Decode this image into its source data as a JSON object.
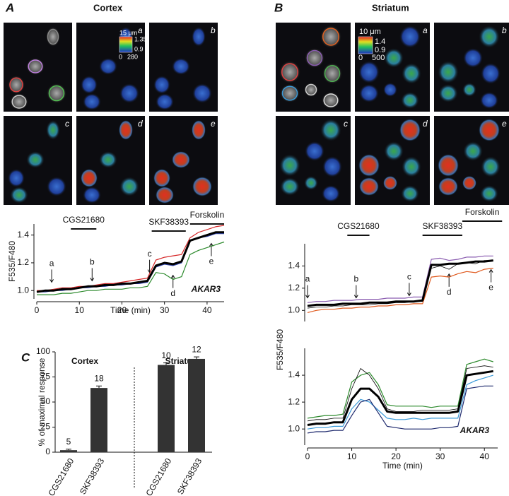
{
  "panel_A": {
    "letter": "A",
    "title": "Cortex",
    "image_labels": [
      "a",
      "b",
      "c",
      "d",
      "e"
    ],
    "scale": {
      "length": "15 μm",
      "ratio_max": "1.35",
      "ratio_min": "0.9",
      "intensity_min": "0",
      "intensity_max": "280"
    }
  },
  "panel_B": {
    "letter": "B",
    "title": "Striatum",
    "image_labels": [
      "a",
      "b",
      "c",
      "d",
      "e"
    ],
    "scale": {
      "length": "10 μm",
      "ratio_max": "1.4",
      "ratio_min": "0.9",
      "intensity_min": "0",
      "intensity_max": "500"
    }
  },
  "panel_C": {
    "letter": "C"
  },
  "chart_data": [
    {
      "type": "line",
      "ylabel": "F535/F480",
      "xlabel": "Time (min)",
      "tag": "AKAR3",
      "xlim": [
        0,
        44
      ],
      "xticks": [
        0,
        10,
        20,
        30,
        40
      ],
      "ylim": [
        0.94,
        1.48
      ],
      "yticks": [
        {
          "value": 1,
          "label": "1.0"
        },
        1.2,
        1.4
      ],
      "treatments": [
        {
          "label": "CGS21680",
          "start": 8,
          "end": 14
        },
        {
          "label": "SKF38393",
          "start": 27,
          "end": 35
        },
        {
          "label": "Forskolin",
          "start": 36,
          "end": 44
        }
      ],
      "annotations": [
        {
          "text": "a",
          "x": 3.5,
          "y": 1.05,
          "direction": "down"
        },
        {
          "text": "b",
          "x": 13,
          "y": 1.06,
          "direction": "down"
        },
        {
          "text": "c",
          "x": 26.5,
          "y": 1.12,
          "direction": "down"
        },
        {
          "text": "d",
          "x": 32,
          "y": 1.12,
          "direction": "up"
        },
        {
          "text": "e",
          "x": 41,
          "y": 1.35,
          "direction": "up"
        }
      ],
      "x": [
        0,
        2,
        4,
        6,
        8,
        10,
        12,
        14,
        16,
        18,
        20,
        22,
        24,
        26,
        28,
        30,
        32,
        34,
        36,
        38,
        40,
        42,
        44
      ],
      "series": [
        {
          "color": "#d62728",
          "width": 1.2,
          "values": [
            1.0,
            1.0,
            1.01,
            1.02,
            1.02,
            1.03,
            1.03,
            1.04,
            1.05,
            1.05,
            1.06,
            1.07,
            1.08,
            1.09,
            1.22,
            1.24,
            1.25,
            1.26,
            1.38,
            1.42,
            1.44,
            1.46,
            1.47
          ]
        },
        {
          "color": "#2b3fa8",
          "width": 1.2,
          "values": [
            0.99,
            0.99,
            1.0,
            1.0,
            1.01,
            1.02,
            1.02,
            1.03,
            1.03,
            1.04,
            1.04,
            1.05,
            1.05,
            1.06,
            1.17,
            1.19,
            1.18,
            1.2,
            1.36,
            1.38,
            1.39,
            1.41,
            1.41
          ]
        },
        {
          "color": "#2c8a2c",
          "width": 1.2,
          "values": [
            0.97,
            0.97,
            0.97,
            0.98,
            0.98,
            0.99,
            1.0,
            1.0,
            1.01,
            1.01,
            1.01,
            1.02,
            1.02,
            1.03,
            1.13,
            1.12,
            1.08,
            1.1,
            1.26,
            1.29,
            1.31,
            1.33,
            1.35
          ]
        },
        {
          "color": "#000000",
          "width": 3,
          "values": [
            0.99,
            1.0,
            1.0,
            1.01,
            1.01,
            1.02,
            1.03,
            1.03,
            1.04,
            1.04,
            1.05,
            1.05,
            1.06,
            1.07,
            1.18,
            1.2,
            1.19,
            1.21,
            1.36,
            1.38,
            1.4,
            1.42,
            1.42
          ]
        }
      ]
    },
    {
      "type": "line",
      "xlim": [
        0,
        43
      ],
      "ylim": [
        0.9,
        1.6
      ],
      "yticks": [
        {
          "value": 1,
          "label": "1.0"
        },
        1.2,
        1.4
      ],
      "treatments": [
        {
          "label": "CGS21680",
          "start": 9,
          "end": 14
        },
        {
          "label": "SKF38393",
          "start": 26,
          "end": 35
        },
        {
          "label": "Forskolin",
          "start": 35,
          "end": 44
        }
      ],
      "annotations": [
        {
          "text": "a",
          "x": 0,
          "y": 1.1,
          "direction": "down"
        },
        {
          "text": "b",
          "x": 11,
          "y": 1.1,
          "direction": "down"
        },
        {
          "text": "c",
          "x": 23,
          "y": 1.12,
          "direction": "down"
        },
        {
          "text": "d",
          "x": 32,
          "y": 1.34,
          "direction": "up"
        },
        {
          "text": "e",
          "x": 41.5,
          "y": 1.38,
          "direction": "up"
        }
      ],
      "x": [
        0,
        2,
        4,
        6,
        8,
        10,
        12,
        14,
        16,
        18,
        20,
        22,
        24,
        26,
        28,
        30,
        32,
        34,
        36,
        38,
        40,
        42
      ],
      "series": [
        {
          "color": "#8a5cb0",
          "width": 1.2,
          "values": [
            1.07,
            1.08,
            1.08,
            1.09,
            1.09,
            1.09,
            1.1,
            1.1,
            1.1,
            1.11,
            1.11,
            1.11,
            1.12,
            1.12,
            1.46,
            1.47,
            1.45,
            1.46,
            1.48,
            1.48,
            1.49,
            1.49
          ]
        },
        {
          "color": "#000000",
          "width": 0.8,
          "values": [
            1.02,
            1.03,
            1.03,
            1.04,
            1.04,
            1.05,
            1.05,
            1.05,
            1.06,
            1.06,
            1.07,
            1.07,
            1.08,
            1.08,
            1.38,
            1.4,
            1.37,
            1.42,
            1.43,
            1.42,
            1.45,
            1.45
          ]
        },
        {
          "color": "#e05a1e",
          "width": 1.2,
          "values": [
            0.98,
            1.0,
            1.01,
            1.01,
            1.02,
            1.02,
            1.03,
            1.03,
            1.04,
            1.04,
            1.05,
            1.05,
            1.06,
            1.06,
            1.3,
            1.31,
            1.3,
            1.33,
            1.35,
            1.34,
            1.37,
            1.38
          ]
        },
        {
          "color": "#000000",
          "width": 3,
          "values": [
            1.04,
            1.05,
            1.05,
            1.05,
            1.06,
            1.06,
            1.06,
            1.07,
            1.07,
            1.07,
            1.08,
            1.08,
            1.08,
            1.09,
            1.41,
            1.41,
            1.42,
            1.42,
            1.43,
            1.44,
            1.44,
            1.45
          ]
        }
      ]
    },
    {
      "type": "line",
      "ylabel": "F535/F480",
      "xlabel": "Time (min)",
      "tag": "AKAR3",
      "xlim": [
        0,
        43
      ],
      "xticks": [
        0,
        10,
        20,
        30,
        40
      ],
      "ylim": [
        0.88,
        1.6
      ],
      "yticks": [
        {
          "value": 1,
          "label": "1.0"
        },
        1.2,
        1.4
      ],
      "x": [
        0,
        2,
        4,
        6,
        8,
        10,
        12,
        14,
        16,
        18,
        20,
        22,
        24,
        26,
        28,
        30,
        32,
        34,
        36,
        38,
        40,
        42
      ],
      "series": [
        {
          "color": "#2c8a2c",
          "width": 1.2,
          "values": [
            1.08,
            1.09,
            1.1,
            1.1,
            1.11,
            1.35,
            1.4,
            1.42,
            1.33,
            1.18,
            1.17,
            1.17,
            1.17,
            1.17,
            1.16,
            1.17,
            1.17,
            1.17,
            1.48,
            1.5,
            1.52,
            1.5
          ]
        },
        {
          "color": "#000000",
          "width": 0.8,
          "values": [
            1.06,
            1.07,
            1.07,
            1.08,
            1.08,
            1.3,
            1.45,
            1.4,
            1.3,
            1.15,
            1.13,
            1.13,
            1.13,
            1.14,
            1.14,
            1.14,
            1.14,
            1.15,
            1.45,
            1.46,
            1.47,
            1.46
          ]
        },
        {
          "color": "#3a9ad9",
          "width": 1.2,
          "values": [
            1.0,
            1.01,
            1.01,
            1.02,
            1.02,
            1.15,
            1.22,
            1.2,
            1.14,
            1.08,
            1.07,
            1.07,
            1.08,
            1.07,
            1.08,
            1.08,
            1.08,
            1.08,
            1.33,
            1.36,
            1.38,
            1.4
          ]
        },
        {
          "color": "#1f2a6e",
          "width": 1.2,
          "values": [
            0.97,
            0.98,
            0.98,
            0.99,
            0.99,
            1.1,
            1.2,
            1.22,
            1.12,
            1.02,
            1.01,
            1.0,
            1.0,
            1.0,
            1.0,
            1.01,
            1.01,
            1.02,
            1.3,
            1.31,
            1.32,
            1.32
          ]
        },
        {
          "color": "#000000",
          "width": 3,
          "values": [
            1.03,
            1.04,
            1.04,
            1.05,
            1.05,
            1.22,
            1.3,
            1.3,
            1.24,
            1.13,
            1.12,
            1.12,
            1.12,
            1.12,
            1.12,
            1.12,
            1.12,
            1.13,
            1.4,
            1.41,
            1.42,
            1.43
          ]
        }
      ]
    },
    {
      "type": "bar",
      "ylabel": "% of maximal response",
      "groups": [
        "Cortex",
        "Striatum"
      ],
      "categories": [
        "CGS21680",
        "SKF38393",
        "CGS21680",
        "SKF38393"
      ],
      "values": [
        2,
        64,
        87,
        93
      ],
      "errors": [
        1,
        2,
        2,
        2
      ],
      "n": [
        5,
        18,
        10,
        12
      ],
      "color": "#333333",
      "ylim": [
        0,
        100
      ],
      "yticks": [
        0,
        25,
        50,
        75,
        100
      ]
    }
  ]
}
